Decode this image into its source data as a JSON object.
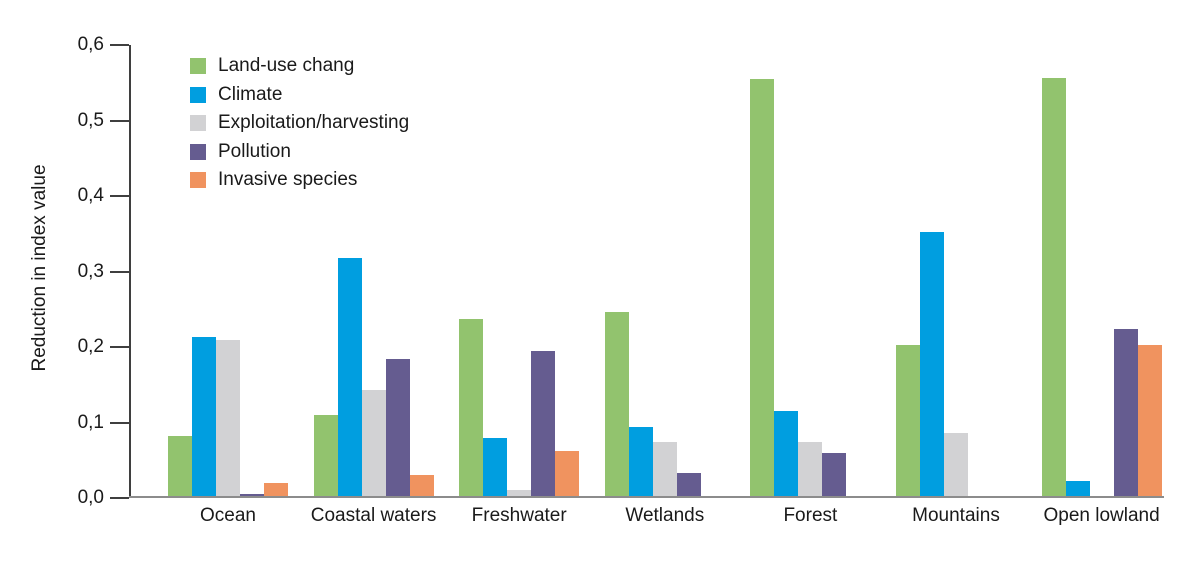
{
  "page": {
    "background_color": "#FFFFFF",
    "text_color": "#1A1A1A",
    "axis_line_color": "#3F3F3F",
    "baseline_color": "#8C8C8C"
  },
  "chart_data": {
    "type": "bar",
    "title": "",
    "xlabel": "",
    "ylabel": "Reduction in index value",
    "ylim": [
      0,
      0.6
    ],
    "grid": false,
    "legend_position": "top-left-inside",
    "decimal_separator": ",",
    "y_ticks": [
      0.0,
      0.1,
      0.2,
      0.3,
      0.4,
      0.5,
      0.6
    ],
    "y_tick_labels": [
      "0,0",
      "0,1",
      "0,2",
      "0,3",
      "0,4",
      "0,5",
      "0,6"
    ],
    "categories": [
      "Ocean",
      "Coastal waters",
      "Freshwater",
      "Wetlands",
      "Forest",
      "Mountains",
      "Open lowland"
    ],
    "series": [
      {
        "name": "Land-use chang",
        "color": "#92C36E",
        "values": [
          0.079,
          0.107,
          0.234,
          0.244,
          0.553,
          0.2,
          0.554
        ]
      },
      {
        "name": "Climate",
        "color": "#009EE0",
        "values": [
          0.211,
          0.315,
          0.077,
          0.092,
          0.113,
          0.35,
          0.02
        ]
      },
      {
        "name": "Exploitation/harvesting",
        "color": "#D2D2D4",
        "values": [
          0.206,
          0.141,
          0.008,
          0.071,
          0.072,
          0.084,
          0.0
        ]
      },
      {
        "name": "Pollution",
        "color": "#655C90",
        "values": [
          0.003,
          0.181,
          0.192,
          0.031,
          0.057,
          0.0,
          0.221
        ]
      },
      {
        "name": "Invasive species",
        "color": "#F0935F",
        "values": [
          0.017,
          0.028,
          0.059,
          0.0,
          0.0,
          0.0,
          0.2
        ]
      }
    ]
  }
}
